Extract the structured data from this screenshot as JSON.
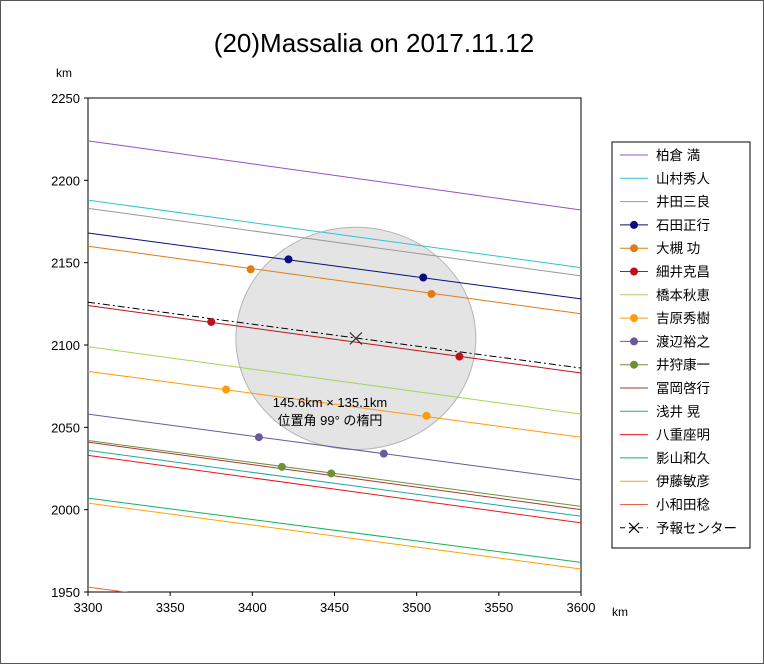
{
  "chart_data": {
    "type": "line",
    "title": "(20)Massalia on 2017.11.12",
    "xlabel": "km",
    "ylabel": "km",
    "xlim": [
      3300,
      3600
    ],
    "ylim": [
      1950,
      2250
    ],
    "xticks": [
      3300,
      3350,
      3400,
      3450,
      3500,
      3550,
      3600
    ],
    "yticks": [
      1950,
      2000,
      2050,
      2100,
      2150,
      2200,
      2250
    ],
    "grid": false,
    "legend_position": "right",
    "ellipse": {
      "center": [
        3463,
        2104
      ],
      "semi_x": 73,
      "semi_y": 67.5,
      "fill": "#e4e4e4",
      "label_lines": [
        "145.6km × 135.1km",
        "位置角 99° の楕円"
      ]
    },
    "series": [
      {
        "name": "柏倉 満",
        "color": "#9a4fc0",
        "y_left": 2224,
        "y_right": 2182,
        "points": []
      },
      {
        "name": "山村秀人",
        "color": "#2ec4d6",
        "y_left": 2188,
        "y_right": 2147,
        "points": []
      },
      {
        "name": "井田三良",
        "color": "#999999",
        "y_left": 2183,
        "y_right": 2142,
        "points": []
      },
      {
        "name": "石田正行",
        "color": "#0a0a80",
        "y_left": 2168,
        "y_right": 2128,
        "points": [
          [
            3422,
            2152
          ],
          [
            3504,
            2141
          ]
        ]
      },
      {
        "name": "大槻 功",
        "color": "#e07b18",
        "y_left": 2160,
        "y_right": 2119,
        "points": [
          [
            3399,
            2146
          ],
          [
            3509,
            2131
          ]
        ]
      },
      {
        "name": "細井克昌",
        "color": "#c0101a",
        "y_left": 2124,
        "y_right": 2083,
        "points": [
          [
            3375,
            2114
          ],
          [
            3526,
            2093
          ]
        ]
      },
      {
        "name": "橋本秋恵",
        "color": "#9fd65a",
        "y_left": 2099,
        "y_right": 2058,
        "points": []
      },
      {
        "name": "吉原秀樹",
        "color": "#ff9a0a",
        "y_left": 2084,
        "y_right": 2044,
        "points": [
          [
            3384,
            2073
          ],
          [
            3506,
            2057
          ]
        ]
      },
      {
        "name": "渡辺裕之",
        "color": "#6a5a9c",
        "y_left": 2058,
        "y_right": 2018,
        "points": [
          [
            3404,
            2044
          ],
          [
            3480,
            2034
          ]
        ]
      },
      {
        "name": "井狩康一",
        "color": "#6f8f3a",
        "y_left": 2042,
        "y_right": 2002,
        "points": [
          [
            3418,
            2026
          ],
          [
            3448,
            2022
          ]
        ]
      },
      {
        "name": "冨岡啓行",
        "color": "#a03a30",
        "y_left": 2041,
        "y_right": 2000,
        "points": []
      },
      {
        "name": "浅井 晃",
        "color": "#20a8a0",
        "y_left": 2036,
        "y_right": 1996,
        "points": []
      },
      {
        "name": "八重座明",
        "color": "#e81818",
        "y_left": 2033,
        "y_right": 1992,
        "points": []
      },
      {
        "name": "影山和久",
        "color": "#18b060",
        "y_left": 2007,
        "y_right": 1968,
        "points": []
      },
      {
        "name": "伊藤敏彦",
        "color": "#ffa000",
        "y_left": 2004,
        "y_right": 1964,
        "points": []
      },
      {
        "name": "小和田稔",
        "color": "#ee6040",
        "y_left": 1953,
        "y_right": 1913,
        "points": []
      },
      {
        "name": "予報センター",
        "color": "#000000",
        "y_left": 2126,
        "y_right": 2086,
        "dashed": true,
        "marker": "x",
        "points": [
          [
            3463,
            2104
          ]
        ]
      }
    ]
  }
}
